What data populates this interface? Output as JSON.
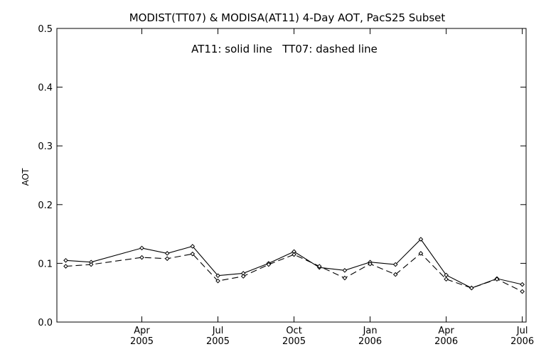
{
  "chart_data": {
    "type": "line",
    "title": "MODIST(TT07) & MODISA(AT11) 4-Day AOT, PacS25 Subset",
    "annotation": "AT11: solid line   TT07: dashed line",
    "ylabel": "AOT",
    "xlabel": "",
    "ylim": [
      0.0,
      0.5
    ],
    "yticks": [
      "0.0",
      "0.1",
      "0.2",
      "0.3",
      "0.4",
      "0.5"
    ],
    "x_axis": {
      "unit": "month",
      "start": "2005-01",
      "end": "2006-07",
      "ticks": [
        {
          "month": "Apr",
          "year": "2005",
          "date": "2005-04"
        },
        {
          "month": "Jul",
          "year": "2005",
          "date": "2005-07"
        },
        {
          "month": "Oct",
          "year": "2005",
          "date": "2005-10"
        },
        {
          "month": "Jan",
          "year": "2006",
          "date": "2006-01"
        },
        {
          "month": "Apr",
          "year": "2006",
          "date": "2006-04"
        },
        {
          "month": "Jul",
          "year": "2006",
          "date": "2006-07"
        }
      ]
    },
    "grid": false,
    "series": [
      {
        "name": "AT11",
        "style": "solid",
        "color": "#000000",
        "x": [
          "2005-01",
          "2005-02",
          "2005-04",
          "2005-05",
          "2005-06",
          "2005-07",
          "2005-08",
          "2005-09",
          "2005-10",
          "2005-11",
          "2005-12",
          "2006-01",
          "2006-02",
          "2006-03",
          "2006-04",
          "2006-05",
          "2006-06",
          "2006-07"
        ],
        "values": [
          0.105,
          0.102,
          0.126,
          0.117,
          0.129,
          0.079,
          0.083,
          0.1,
          0.12,
          0.093,
          0.088,
          0.102,
          0.098,
          0.141,
          0.08,
          0.058,
          0.074,
          0.064
        ]
      },
      {
        "name": "TT07",
        "style": "dashed",
        "color": "#000000",
        "x": [
          "2005-01",
          "2005-02",
          "2005-04",
          "2005-05",
          "2005-06",
          "2005-07",
          "2005-08",
          "2005-09",
          "2005-10",
          "2005-11",
          "2005-12",
          "2006-01",
          "2006-02",
          "2006-03",
          "2006-04",
          "2006-05",
          "2006-06",
          "2006-07"
        ],
        "values": [
          0.095,
          0.098,
          0.11,
          0.108,
          0.116,
          0.07,
          0.078,
          0.098,
          0.115,
          0.095,
          0.075,
          0.099,
          0.081,
          0.117,
          0.073,
          0.058,
          0.073,
          0.052
        ]
      }
    ]
  }
}
